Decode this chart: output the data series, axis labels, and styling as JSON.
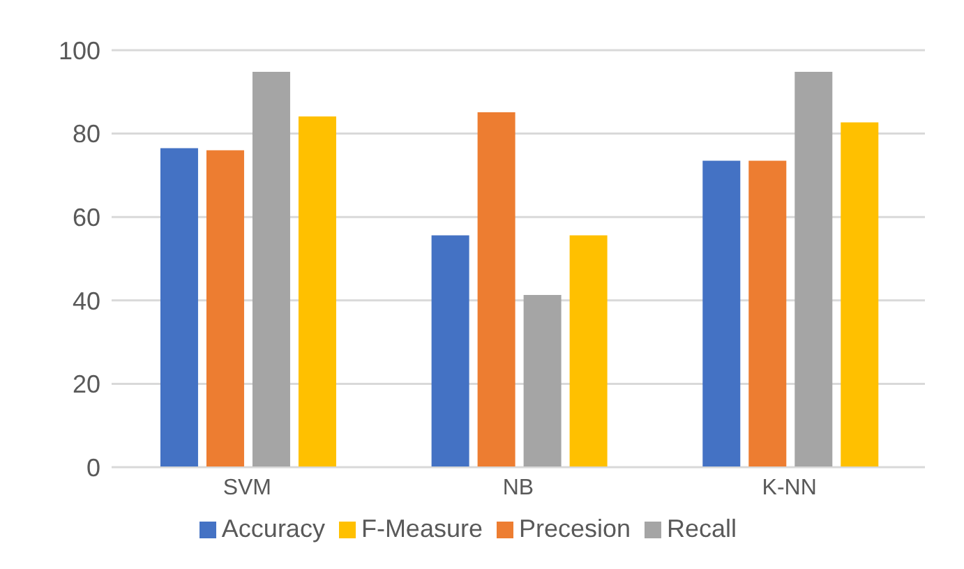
{
  "chart_data": {
    "type": "bar",
    "categories": [
      "SVM",
      "NB",
      "K-NN"
    ],
    "series": [
      {
        "name": "Accuracy",
        "color": "#4472c4",
        "values": [
          76.5,
          55.6,
          73.5
        ]
      },
      {
        "name": "Precesion",
        "color": "#ed7d31",
        "values": [
          76,
          85.1,
          73.5
        ]
      },
      {
        "name": "Recall",
        "color": "#a5a5a5",
        "values": [
          94.8,
          41.3,
          94.8
        ]
      },
      {
        "name": "F-Measure",
        "color": "#ffc000",
        "values": [
          84.1,
          55.6,
          82.7
        ]
      }
    ],
    "ylim": [
      0,
      100
    ],
    "yticks": [
      0,
      20,
      40,
      60,
      80,
      100
    ],
    "grid": "y",
    "legend": "bottom"
  }
}
